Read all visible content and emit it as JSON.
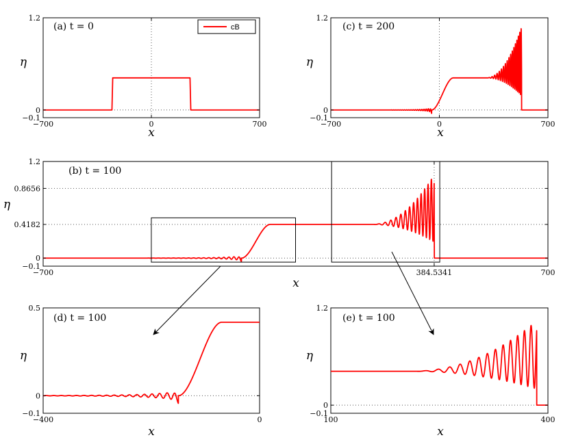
{
  "chart_data": [
    {
      "id": "a",
      "type": "line",
      "title": "(a) t = 0",
      "xlabel": "x",
      "ylabel": "η",
      "xlim": [
        -700,
        700
      ],
      "ylim": [
        -0.1,
        1.2
      ],
      "xticks": [
        -700,
        0,
        700
      ],
      "yticks": [
        1.2,
        0,
        -0.1
      ],
      "grid": "dotted x=0, y=0",
      "legend": {
        "entries": [
          "cB"
        ],
        "placement": "top-right"
      },
      "series": [
        {
          "name": "cB",
          "x": [
            -700,
            -255,
            -250,
            250,
            255,
            700
          ],
          "y": [
            0,
            0,
            0.4182,
            0.4182,
            0,
            0
          ]
        }
      ]
    },
    {
      "id": "c",
      "type": "line",
      "title": "(c) t = 200",
      "xlabel": "x",
      "ylabel": "η",
      "xlim": [
        -700,
        700
      ],
      "ylim": [
        -0.1,
        1.2
      ],
      "xticks": [
        -700,
        0,
        700
      ],
      "yticks": [
        1.2,
        0,
        -0.1
      ],
      "grid": "dotted x=0, y=0",
      "series": [
        {
          "name": "cB",
          "profile": "bore",
          "rise_start": -50,
          "rise_end": 90,
          "plateau": 0.4182,
          "wave_start": 300,
          "front": 530,
          "peak": 1.08
        }
      ]
    },
    {
      "id": "b",
      "type": "line",
      "title": "(b) t = 100",
      "xlabel": "x",
      "ylabel": "η",
      "xlim": [
        -700,
        700
      ],
      "ylim": [
        -0.1,
        1.2
      ],
      "xticks": [
        -700,
        384.5341,
        700
      ],
      "xticklabels": [
        "−700",
        "384.5341",
        "700"
      ],
      "yticks": [
        1.2,
        0.8656,
        0.4182,
        0,
        -0.1
      ],
      "grid": "dotted y=0, y=0.4182, y=0.8656, x=384.5341",
      "zoom_boxes": [
        {
          "x": [
            -400,
            0
          ],
          "y": [
            -0.05,
            0.5
          ],
          "target": "d"
        },
        {
          "x": [
            100,
            400
          ],
          "y": [
            -0.05,
            1.2
          ],
          "target": "e"
        }
      ],
      "series": [
        {
          "name": "cB",
          "profile": "bore",
          "rise_start": -150,
          "rise_end": -70,
          "plateau": 0.4182,
          "wave_start": 210,
          "front": 384.5341,
          "peak": 1.04
        }
      ]
    },
    {
      "id": "d",
      "type": "line",
      "title": "(d) t = 100",
      "xlabel": "x",
      "ylabel": "η",
      "xlim": [
        -400,
        0
      ],
      "ylim": [
        -0.1,
        0.5
      ],
      "xticks": [
        -400,
        0
      ],
      "yticks": [
        0.5,
        0,
        -0.1
      ],
      "grid": "dotted y=0",
      "series": [
        {
          "name": "cB",
          "profile": "rise",
          "rise_start": -150,
          "rise_end": -70,
          "plateau": 0.4182,
          "trough": -0.02
        }
      ]
    },
    {
      "id": "e",
      "type": "line",
      "title": "(e) t = 100",
      "xlabel": "x",
      "ylabel": "η",
      "xlim": [
        100,
        400
      ],
      "ylim": [
        -0.1,
        1.2
      ],
      "xticks": [
        100,
        400
      ],
      "yticks": [
        1.2,
        0,
        -0.1
      ],
      "grid": "dotted y=0",
      "series": [
        {
          "name": "cB",
          "profile": "front",
          "plateau": 0.4182,
          "wave_start": 210,
          "front": 384.5341,
          "peak": 1.04
        }
      ]
    }
  ],
  "colors": {
    "series": "#ff0000",
    "axes": "#000000",
    "grid": "#555555"
  }
}
